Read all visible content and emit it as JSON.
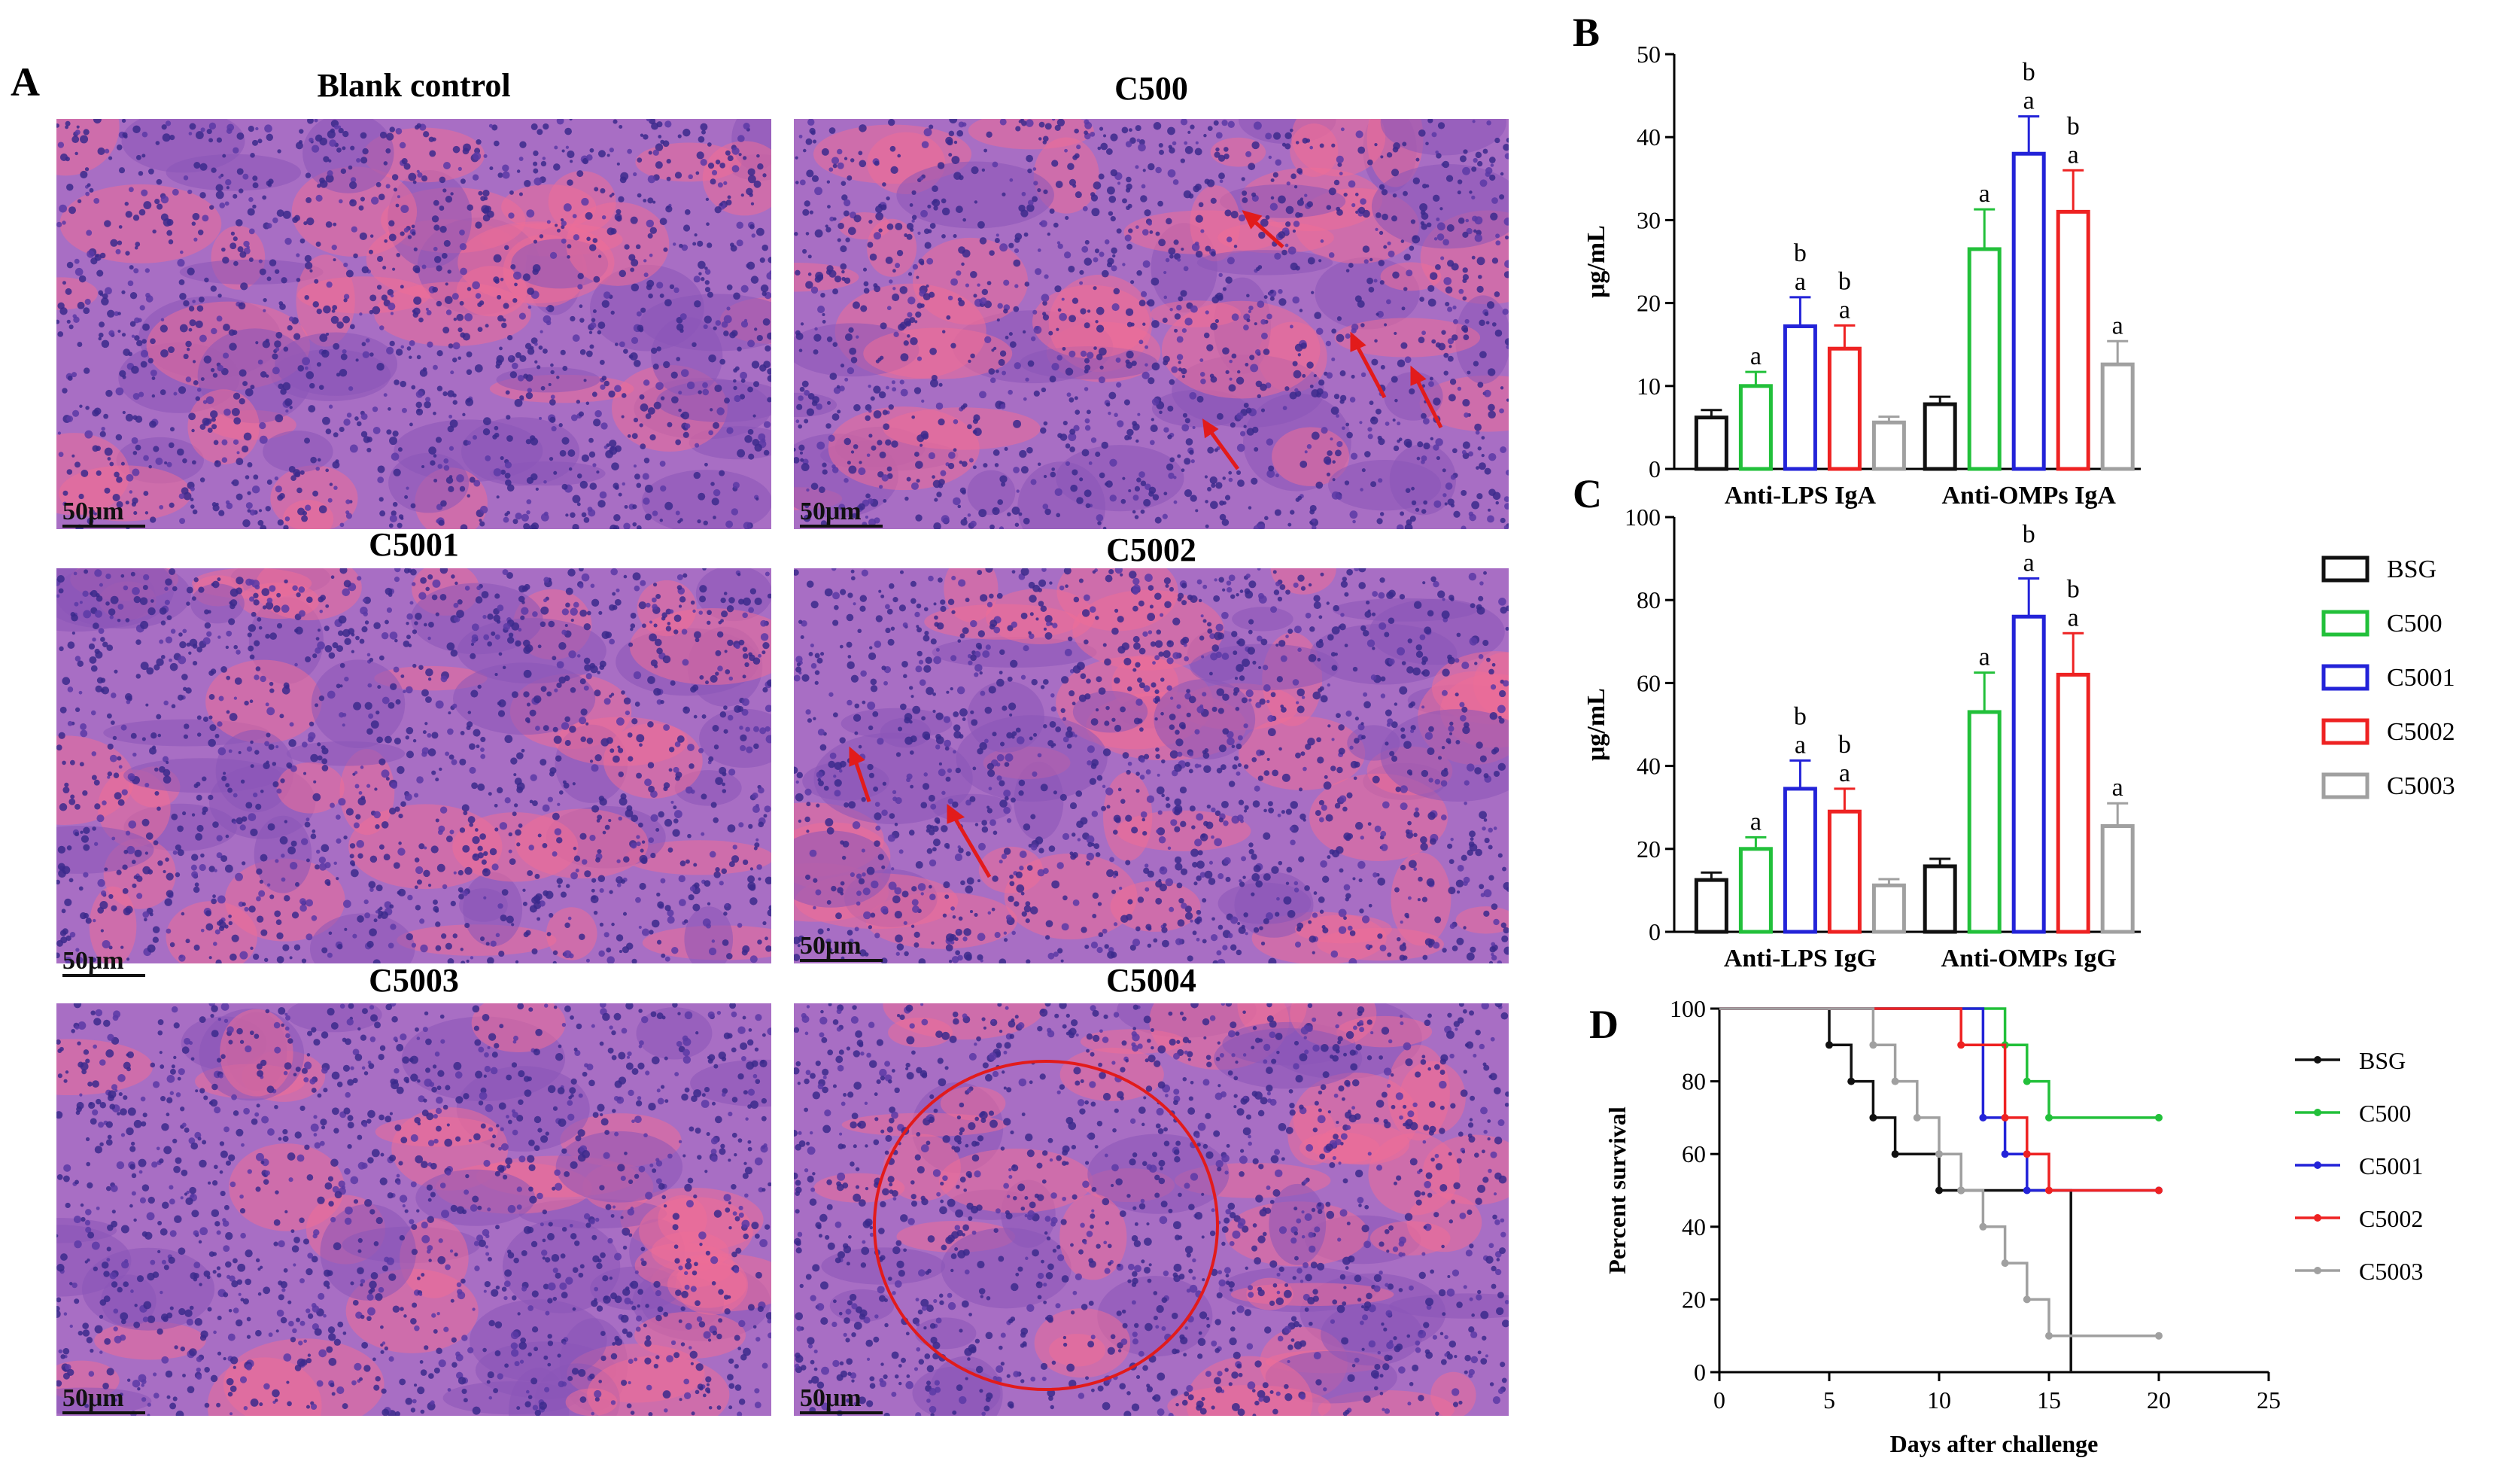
{
  "panels": {
    "a": {
      "letter": "A",
      "images": [
        {
          "title": "Blank control",
          "scale": "50μm"
        },
        {
          "title": "C500",
          "scale": "50μm"
        },
        {
          "title": "C5001",
          "scale": "50μm"
        },
        {
          "title": "C5002",
          "scale": "50μm"
        },
        {
          "title": "C5003",
          "scale": "50μm"
        },
        {
          "title": "C5004",
          "scale": "50μm"
        }
      ]
    },
    "b": {
      "letter": "B"
    },
    "c": {
      "letter": "C"
    },
    "d": {
      "letter": "D"
    }
  },
  "colors": {
    "BSG": "#111111",
    "C500": "#22c03a",
    "C5001": "#2323d8",
    "C5002": "#ee2222",
    "C5003": "#a0a0a0"
  },
  "chart_data": [
    {
      "id": "B",
      "type": "bar",
      "categories": [
        "Anti-LPS IgA",
        "Anti-OMPs IgA"
      ],
      "ylabel": "μg/mL",
      "ylim": [
        0,
        50
      ],
      "yticks": [
        0,
        10,
        20,
        30,
        40,
        50
      ],
      "series": [
        {
          "name": "BSG",
          "values": [
            6.2,
            7.8
          ],
          "errors": [
            0.9,
            0.9
          ],
          "labels": [
            [],
            []
          ]
        },
        {
          "name": "C500",
          "values": [
            10,
            26.5
          ],
          "errors": [
            1.7,
            4.8
          ],
          "labels": [
            [
              "a"
            ],
            [
              "a"
            ]
          ]
        },
        {
          "name": "C5001",
          "values": [
            17.2,
            38
          ],
          "errors": [
            3.5,
            4.5
          ],
          "labels": [
            [
              "a",
              "b"
            ],
            [
              "a",
              "b"
            ]
          ]
        },
        {
          "name": "C5002",
          "values": [
            14.5,
            31
          ],
          "errors": [
            2.8,
            5
          ],
          "labels": [
            [
              "a",
              "b"
            ],
            [
              "a",
              "b"
            ]
          ]
        },
        {
          "name": "C5003",
          "values": [
            5.6,
            12.6
          ],
          "errors": [
            0.7,
            2.8
          ],
          "labels": [
            [],
            [
              "a"
            ]
          ]
        }
      ]
    },
    {
      "id": "C",
      "type": "bar",
      "categories": [
        "Anti-LPS IgG",
        "Anti-OMPs IgG"
      ],
      "ylabel": "μg/mL",
      "ylim": [
        0,
        100
      ],
      "yticks": [
        0,
        20,
        40,
        60,
        80,
        100
      ],
      "series": [
        {
          "name": "BSG",
          "values": [
            12.5,
            15.8
          ],
          "errors": [
            1.8,
            1.8
          ],
          "labels": [
            [],
            []
          ]
        },
        {
          "name": "C500",
          "values": [
            20,
            53
          ],
          "errors": [
            2.8,
            9.5
          ],
          "labels": [
            [
              "a"
            ],
            [
              "a"
            ]
          ]
        },
        {
          "name": "C5001",
          "values": [
            34.5,
            76
          ],
          "errors": [
            6.8,
            9.2
          ],
          "labels": [
            [
              "a",
              "b"
            ],
            [
              "a",
              "b"
            ]
          ]
        },
        {
          "name": "C5002",
          "values": [
            29,
            62
          ],
          "errors": [
            5.5,
            10
          ],
          "labels": [
            [
              "a",
              "b"
            ],
            [
              "a",
              "b"
            ]
          ]
        },
        {
          "name": "C5003",
          "values": [
            11.2,
            25.5
          ],
          "errors": [
            1.5,
            5.5
          ],
          "labels": [
            [],
            [
              "a"
            ]
          ]
        }
      ],
      "legend": [
        "BSG",
        "C500",
        "C5001",
        "C5002",
        "C5003"
      ],
      "legend_position": "right"
    },
    {
      "id": "D",
      "type": "line",
      "xlabel": "Days after challenge",
      "ylabel": "Percent survival",
      "xlim": [
        0,
        25
      ],
      "ylim": [
        0,
        100
      ],
      "xticks": [
        0,
        5,
        10,
        15,
        20,
        25
      ],
      "yticks": [
        0,
        20,
        40,
        60,
        80,
        100
      ],
      "series": [
        {
          "name": "BSG",
          "x": [
            0,
            5,
            6,
            7,
            8,
            10,
            11,
            16
          ],
          "y": [
            100,
            90,
            80,
            70,
            60,
            50,
            50,
            0
          ]
        },
        {
          "name": "C500",
          "x": [
            0,
            13,
            14,
            15,
            20
          ],
          "y": [
            100,
            90,
            80,
            70,
            70
          ]
        },
        {
          "name": "C5001",
          "x": [
            0,
            12,
            13,
            14,
            20
          ],
          "y": [
            100,
            70,
            60,
            50,
            50
          ]
        },
        {
          "name": "C5002",
          "x": [
            0,
            11,
            13,
            14,
            15,
            20
          ],
          "y": [
            100,
            90,
            70,
            60,
            50,
            50
          ]
        },
        {
          "name": "C5003",
          "x": [
            0,
            7,
            8,
            9,
            10,
            11,
            12,
            13,
            14,
            15,
            20
          ],
          "y": [
            100,
            90,
            80,
            70,
            60,
            50,
            40,
            30,
            20,
            10,
            10
          ]
        }
      ],
      "legend": [
        "BSG",
        "C500",
        "C5001",
        "C5002",
        "C5003"
      ],
      "legend_position": "right"
    }
  ]
}
